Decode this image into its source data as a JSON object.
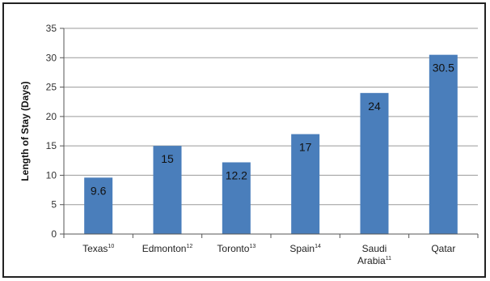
{
  "chart_data": {
    "type": "bar",
    "categories": [
      {
        "name": "Texas",
        "sup": "10"
      },
      {
        "name": "Edmonton",
        "sup": "12"
      },
      {
        "name": "Toronto",
        "sup": "13"
      },
      {
        "name": "Spain",
        "sup": "14"
      },
      {
        "name": "Saudi Arabia",
        "sup": "11"
      },
      {
        "name": "Qatar",
        "sup": ""
      }
    ],
    "values": [
      9.6,
      15,
      12.2,
      17,
      24,
      30.5
    ],
    "data_labels": [
      "9.6",
      "15",
      "12.2",
      "17",
      "24",
      "30.5"
    ],
    "ylabel": "Length of Stay (Days)",
    "xlabel": "",
    "ylim": [
      0,
      35
    ],
    "yticks": [
      "0",
      "5",
      "10",
      "15",
      "20",
      "25",
      "30",
      "35"
    ],
    "grid": true,
    "bar_color": "#4a7ebb"
  }
}
